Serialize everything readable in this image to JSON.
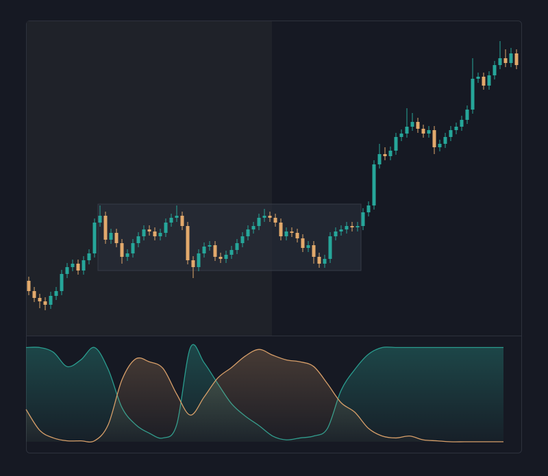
{
  "chart_data": [
    {
      "type": "candlestick",
      "ylim": [
        0,
        460
      ],
      "up_color": "#26a69a",
      "down_color": "#e2a96c",
      "open": [
        80,
        65,
        55,
        50,
        45,
        58,
        65,
        90,
        100,
        105,
        95,
        110,
        120,
        165,
        175,
        140,
        150,
        135,
        115,
        120,
        135,
        145,
        155,
        152,
        145,
        150,
        165,
        172,
        175,
        160,
        110,
        100,
        120,
        130,
        132,
        115,
        112,
        118,
        125,
        135,
        145,
        155,
        160,
        172,
        175,
        172,
        165,
        145,
        152,
        150,
        142,
        128,
        132,
        115,
        105,
        112,
        145,
        152,
        155,
        160,
        158,
        160,
        180,
        190,
        250,
        265,
        262,
        270,
        290,
        295,
        305,
        312,
        302,
        295,
        300,
        275,
        280,
        290,
        300,
        305,
        315,
        330,
        375,
        378,
        365,
        380,
        395,
        405,
        398,
        412
      ],
      "high": [
        86,
        71,
        61,
        56,
        64,
        71,
        96,
        106,
        111,
        111,
        116,
        126,
        171,
        190,
        181,
        156,
        156,
        141,
        126,
        141,
        151,
        161,
        161,
        158,
        156,
        171,
        178,
        190,
        181,
        166,
        116,
        126,
        136,
        138,
        138,
        121,
        124,
        131,
        141,
        151,
        161,
        166,
        178,
        185,
        181,
        178,
        171,
        158,
        158,
        156,
        148,
        138,
        138,
        121,
        118,
        151,
        158,
        161,
        166,
        166,
        166,
        186,
        196,
        256,
        280,
        275,
        276,
        296,
        301,
        332,
        325,
        318,
        308,
        306,
        306,
        286,
        296,
        306,
        311,
        321,
        336,
        405,
        384,
        384,
        386,
        401,
        430,
        418,
        420,
        418
      ],
      "low": [
        59,
        49,
        40,
        37,
        39,
        52,
        59,
        84,
        94,
        89,
        89,
        104,
        114,
        159,
        134,
        134,
        129,
        105,
        109,
        114,
        129,
        139,
        146,
        139,
        139,
        144,
        159,
        166,
        154,
        104,
        84,
        94,
        114,
        124,
        109,
        106,
        106,
        112,
        119,
        129,
        139,
        149,
        154,
        166,
        166,
        159,
        139,
        139,
        144,
        136,
        122,
        122,
        105,
        99,
        99,
        106,
        139,
        146,
        149,
        152,
        152,
        154,
        174,
        184,
        244,
        256,
        256,
        264,
        284,
        289,
        299,
        296,
        289,
        289,
        265,
        269,
        274,
        284,
        294,
        299,
        309,
        324,
        369,
        359,
        359,
        374,
        389,
        392,
        392,
        389
      ],
      "close": [
        65,
        55,
        50,
        45,
        58,
        65,
        90,
        100,
        105,
        95,
        110,
        120,
        165,
        175,
        140,
        150,
        135,
        115,
        120,
        135,
        145,
        155,
        152,
        145,
        150,
        165,
        172,
        175,
        160,
        110,
        100,
        120,
        130,
        132,
        115,
        112,
        118,
        125,
        135,
        145,
        155,
        160,
        172,
        175,
        172,
        165,
        145,
        152,
        150,
        142,
        128,
        132,
        115,
        105,
        112,
        145,
        152,
        155,
        160,
        158,
        160,
        180,
        190,
        250,
        265,
        262,
        270,
        290,
        295,
        305,
        312,
        302,
        295,
        300,
        275,
        280,
        290,
        300,
        305,
        315,
        330,
        375,
        378,
        365,
        380,
        395,
        405,
        398,
        412,
        395
      ]
    },
    {
      "type": "line",
      "xlim": [
        0,
        724
      ],
      "ylim": [
        0,
        100
      ],
      "x": [
        0,
        20,
        40,
        60,
        80,
        100,
        120,
        140,
        160,
        180,
        200,
        220,
        240,
        260,
        280,
        300,
        320,
        340,
        360,
        380,
        400,
        420,
        440,
        460,
        480,
        500,
        520,
        540,
        560,
        580,
        600,
        620,
        640,
        660,
        680,
        697
      ],
      "series": [
        {
          "color": "#2a9d8f",
          "values": [
            99,
            99,
            94,
            79,
            86,
            99,
            76,
            36,
            18,
            9,
            4,
            18,
            99,
            83,
            61,
            40,
            27,
            17,
            6,
            2,
            4,
            6,
            14,
            54,
            76,
            92,
            99,
            99,
            99,
            99,
            99,
            99,
            99,
            99,
            99,
            99
          ]
        },
        {
          "color": "#d9a06a",
          "values": [
            34,
            12,
            4,
            1,
            1,
            1,
            18,
            65,
            87,
            84,
            77,
            50,
            28,
            47,
            67,
            78,
            90,
            97,
            91,
            86,
            84,
            79,
            61,
            41,
            31,
            14,
            6,
            4,
            6,
            2,
            1,
            0,
            0,
            0,
            0,
            0
          ]
        }
      ]
    }
  ]
}
